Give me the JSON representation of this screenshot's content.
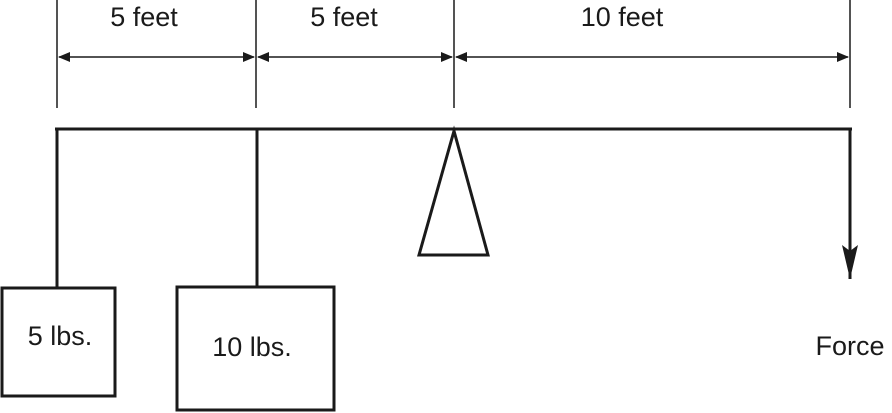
{
  "dimensions": [
    {
      "label": "5 feet"
    },
    {
      "label": "5 feet"
    },
    {
      "label": "10 feet"
    }
  ],
  "weights": [
    {
      "label": "5 lbs."
    },
    {
      "label": "10 lbs."
    }
  ],
  "force": {
    "label": "Force"
  },
  "colors": {
    "ink": "#1a1a1a",
    "background": "#ffffff"
  }
}
